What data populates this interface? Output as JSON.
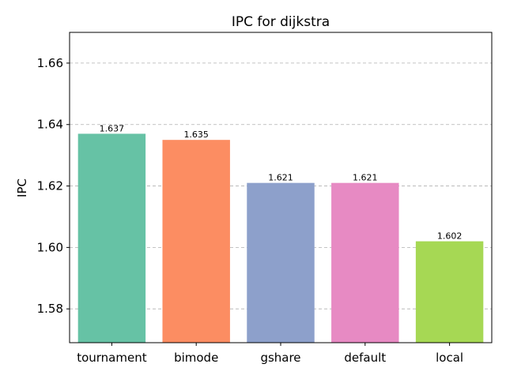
{
  "chart_data": {
    "type": "bar",
    "title": "IPC for dijkstra",
    "xlabel": "",
    "ylabel": "IPC",
    "categories": [
      "tournament",
      "bimode",
      "gshare",
      "default",
      "local"
    ],
    "values": [
      1.637,
      1.635,
      1.621,
      1.621,
      1.602
    ],
    "data_labels": [
      "1.637",
      "1.635",
      "1.621",
      "1.621",
      "1.602"
    ],
    "colors": [
      "#66c2a5",
      "#fc8d62",
      "#8da0cb",
      "#e78ac3",
      "#a6d854"
    ],
    "ylim": [
      1.569,
      1.67
    ],
    "yticks": [
      1.58,
      1.6,
      1.62,
      1.64,
      1.66
    ],
    "ytick_labels": [
      "1.58",
      "1.60",
      "1.62",
      "1.64",
      "1.66"
    ],
    "grid": "y-dashed",
    "legend": "none"
  }
}
